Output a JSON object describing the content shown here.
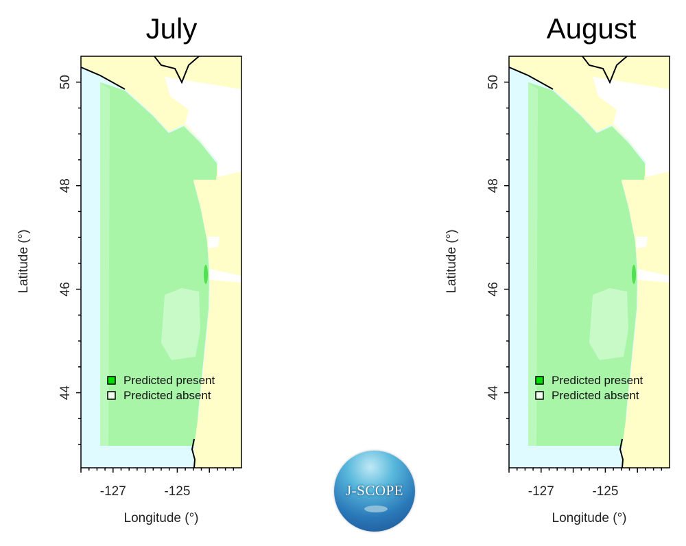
{
  "chart_data": [
    {
      "type": "map",
      "title": "July",
      "xlabel": "Longitude (°)",
      "ylabel": "Latitude (°)",
      "xlim": [
        -128.0,
        -123.0
      ],
      "ylim": [
        42.55,
        50.5
      ],
      "x_ticks": [
        "-127",
        "-125"
      ],
      "y_ticks": [
        "50",
        "48",
        "46",
        "44"
      ],
      "legend": {
        "placement": "bottom-left",
        "entries": [
          {
            "label": "Predicted present",
            "color": "#00e000"
          },
          {
            "label": "Predicted absent",
            "color": "#f0fff0"
          }
        ]
      }
    },
    {
      "type": "map",
      "title": "August",
      "xlabel": "Longitude (°)",
      "ylabel": "Latitude (°)",
      "xlim": [
        -128.0,
        -123.0
      ],
      "ylim": [
        42.55,
        50.5
      ],
      "x_ticks": [
        "-127",
        "-125"
      ],
      "y_ticks": [
        "50",
        "48",
        "46",
        "44"
      ],
      "legend": {
        "placement": "bottom-left",
        "entries": [
          {
            "label": "Predicted present",
            "color": "#00e000"
          },
          {
            "label": "Predicted absent",
            "color": "#f0fff0"
          }
        ]
      }
    }
  ],
  "colors": {
    "ocean": "#e0fbff",
    "probability": "#a8f5a8",
    "low_probability": "#c8fac8",
    "land": "#fffdc8",
    "inland_water": "#ffffff"
  },
  "logo": {
    "text": "J-SCOPE"
  }
}
